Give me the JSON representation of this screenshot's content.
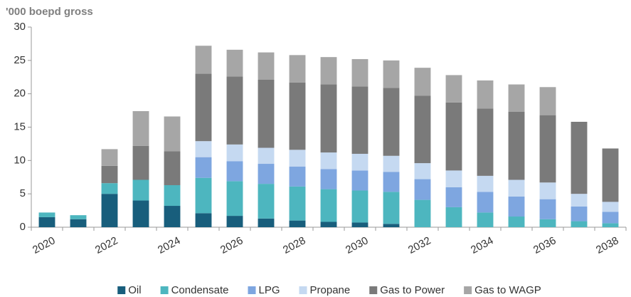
{
  "chart_data": {
    "type": "stacked_bar",
    "y_label": "'000 boepd gross",
    "categories": [
      "2020",
      null,
      "2022",
      null,
      "2024",
      null,
      "2026",
      null,
      "2028",
      null,
      "2030",
      null,
      "2032",
      null,
      "2034",
      null,
      "2036",
      null,
      "2038"
    ],
    "series": [
      {
        "name": "Oil",
        "color": "#185e7c",
        "values": [
          1.5,
          1.2,
          5.0,
          4.0,
          3.2,
          2.1,
          1.7,
          1.3,
          1.0,
          0.8,
          0.7,
          0.5,
          0,
          0,
          0,
          0,
          0,
          0,
          0
        ]
      },
      {
        "name": "Condensate",
        "color": "#4db6bf",
        "values": [
          0.7,
          0.6,
          1.6,
          3.1,
          3.1,
          5.3,
          5.2,
          5.2,
          5.1,
          4.9,
          4.8,
          4.8,
          4.1,
          3.0,
          2.2,
          1.6,
          1.2,
          0.9,
          0.6
        ]
      },
      {
        "name": "LPG",
        "color": "#7ea6e0",
        "values": [
          0,
          0,
          0,
          0,
          0,
          3.1,
          3.0,
          3.0,
          3.0,
          3.0,
          3.0,
          3.0,
          3.1,
          3.0,
          3.1,
          3.0,
          3.0,
          2.2,
          1.7
        ]
      },
      {
        "name": "Propane",
        "color": "#c5d9f1",
        "values": [
          0,
          0,
          0,
          0,
          0,
          2.4,
          2.5,
          2.4,
          2.5,
          2.5,
          2.5,
          2.4,
          2.4,
          2.5,
          2.4,
          2.5,
          2.5,
          1.9,
          1.5
        ]
      },
      {
        "name": "Gas to Power",
        "color": "#7a7a7a",
        "values": [
          0,
          0,
          2.6,
          5.1,
          5.1,
          10.1,
          10.2,
          10.2,
          10.1,
          10.2,
          10.1,
          10.2,
          10.1,
          10.2,
          10.1,
          10.2,
          10.1,
          10.8,
          8.0
        ]
      },
      {
        "name": "Gas to WAGP",
        "color": "#a6a6a6",
        "values": [
          0,
          0,
          2.5,
          5.2,
          5.2,
          4.2,
          4.0,
          4.1,
          4.1,
          4.1,
          4.1,
          4.1,
          4.2,
          4.1,
          4.2,
          4.1,
          4.2,
          0,
          0
        ]
      }
    ],
    "ylim": [
      0,
      30
    ],
    "yticks": [
      0,
      5,
      10,
      15,
      20,
      25,
      30
    ],
    "grid": false,
    "legend": "bottom"
  }
}
